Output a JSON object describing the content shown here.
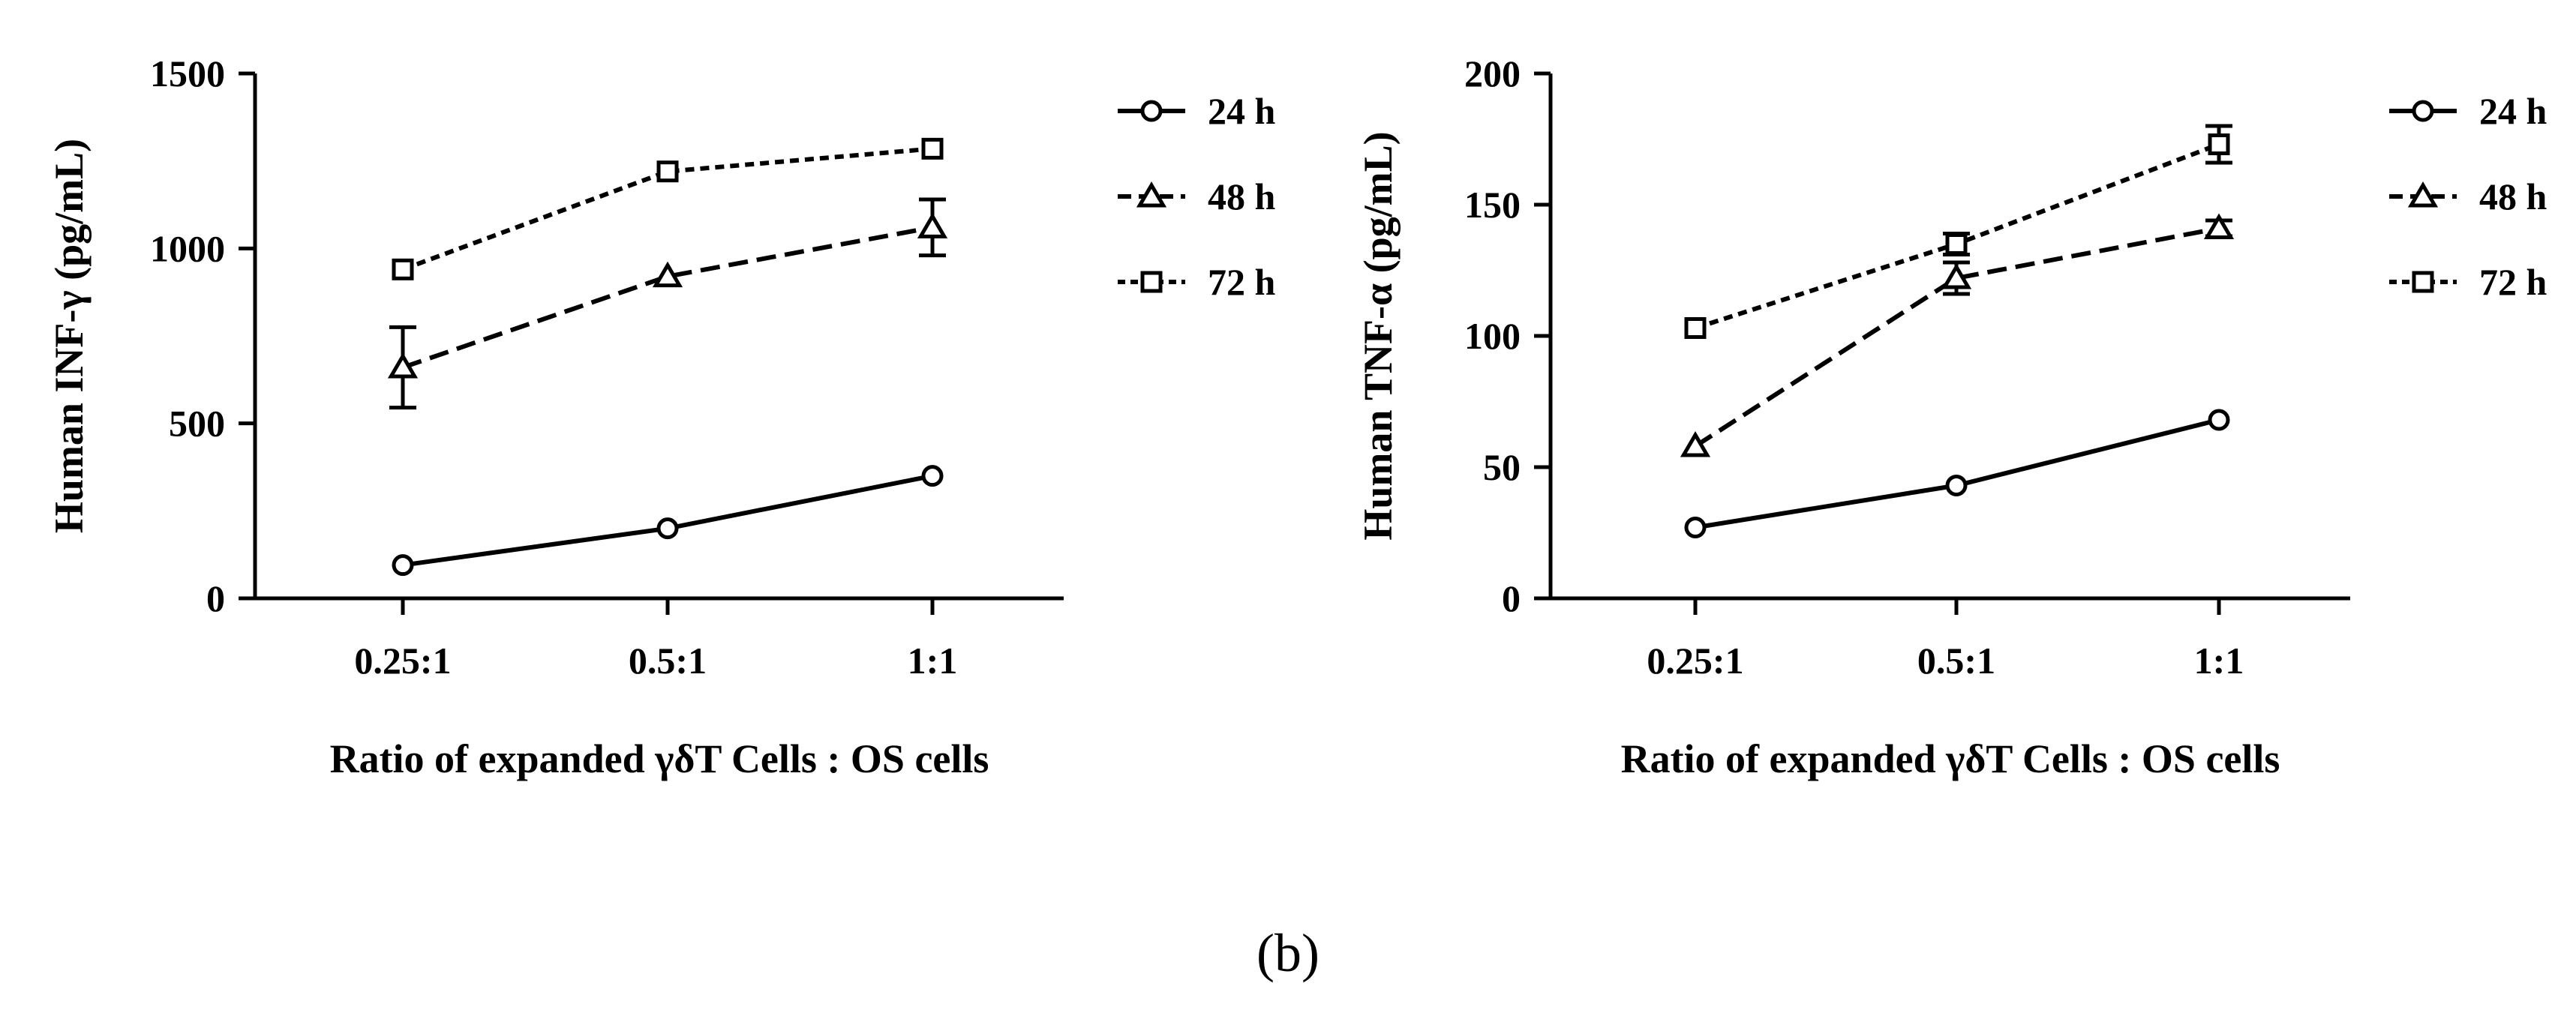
{
  "caption": "(b)",
  "chart_data": [
    {
      "type": "line",
      "title": "",
      "xlabel": "Ratio of expanded γδT Cells : OS cells",
      "ylabel": "Human INF-γ (pg/mL)",
      "categories": [
        "0.25:1",
        "0.5:1",
        "1:1"
      ],
      "ylim": [
        0,
        1500
      ],
      "yticks": [
        0,
        500,
        1000,
        1500
      ],
      "legend_position": "right",
      "series": [
        {
          "name": "24 h",
          "marker": "circle",
          "dash": "solid",
          "values": [
            95,
            200,
            350
          ],
          "errors": [
            0,
            0,
            0
          ]
        },
        {
          "name": "48 h",
          "marker": "triangle",
          "dash": "long-dash",
          "values": [
            660,
            920,
            1060
          ],
          "errors": [
            115,
            0,
            80
          ]
        },
        {
          "name": "72 h",
          "marker": "square",
          "dash": "short-dash",
          "values": [
            940,
            1220,
            1285
          ],
          "errors": [
            0,
            0,
            0
          ]
        }
      ]
    },
    {
      "type": "line",
      "title": "",
      "xlabel": "Ratio of expanded γδT Cells : OS cells",
      "ylabel": "Human TNF-α (pg/mL)",
      "categories": [
        "0.25:1",
        "0.5:1",
        "1:1"
      ],
      "ylim": [
        0,
        200
      ],
      "yticks": [
        0,
        50,
        100,
        150,
        200
      ],
      "legend_position": "right",
      "series": [
        {
          "name": "24 h",
          "marker": "circle",
          "dash": "solid",
          "values": [
            27,
            43,
            68
          ],
          "errors": [
            0,
            0,
            0
          ]
        },
        {
          "name": "48 h",
          "marker": "triangle",
          "dash": "long-dash",
          "values": [
            58,
            122,
            141
          ],
          "errors": [
            0,
            6,
            3
          ]
        },
        {
          "name": "72 h",
          "marker": "square",
          "dash": "short-dash",
          "values": [
            103,
            135,
            173
          ],
          "errors": [
            0,
            4,
            7
          ]
        }
      ]
    }
  ]
}
